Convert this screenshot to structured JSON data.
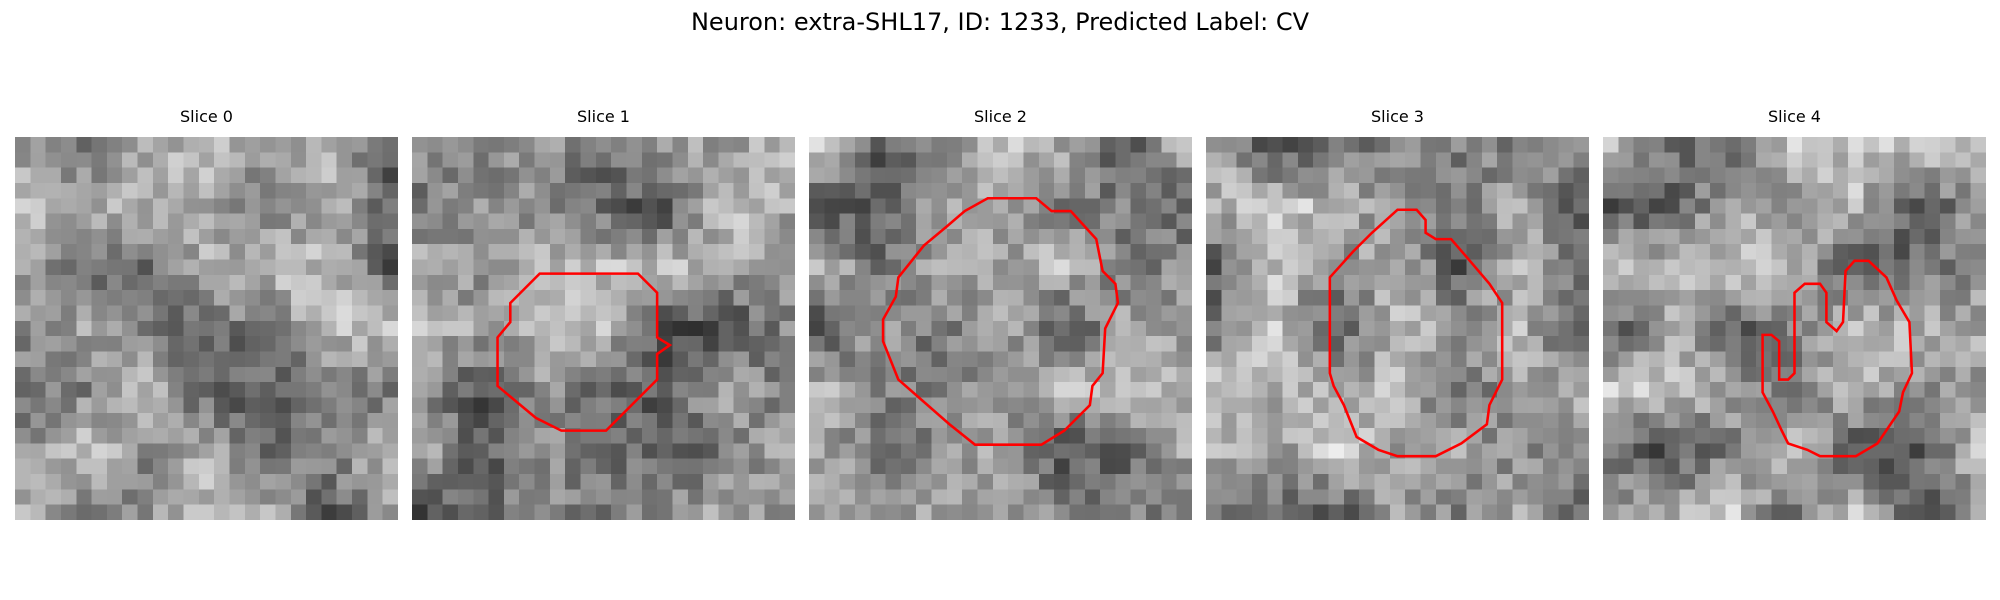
{
  "title": "Neuron: extra-SHL17, ID: 1233, Predicted Label: CV",
  "panels": [
    {
      "title": "Slice 0"
    },
    {
      "title": "Slice 1"
    },
    {
      "title": "Slice 2"
    },
    {
      "title": "Slice 3"
    },
    {
      "title": "Slice 4"
    }
  ]
}
